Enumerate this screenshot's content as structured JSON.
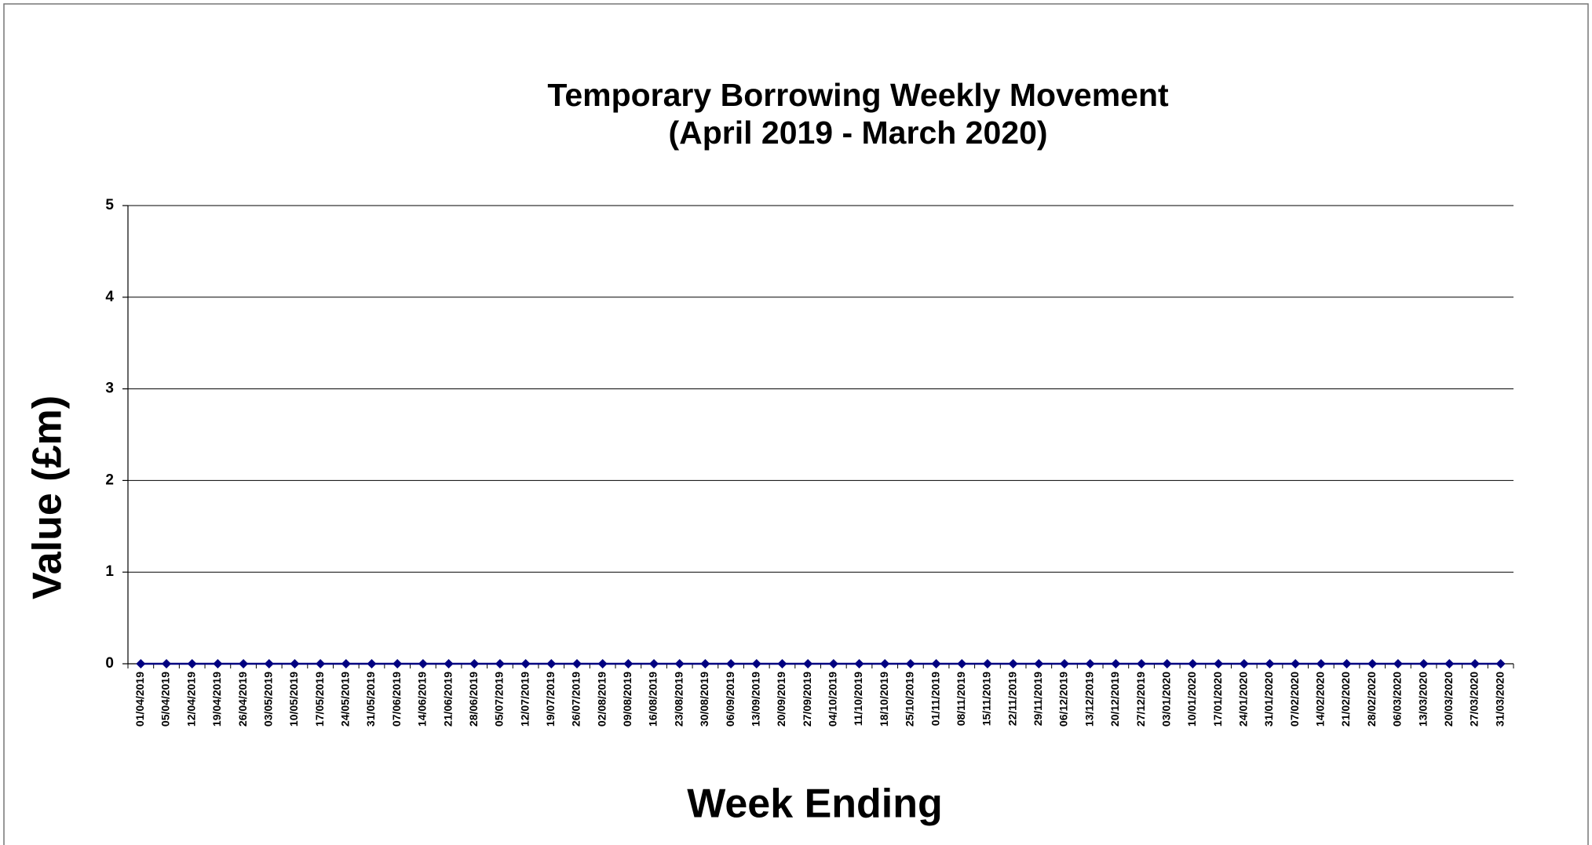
{
  "chart_data": {
    "type": "line",
    "title": [
      "Temporary Borrowing Weekly Movement",
      "(April 2019 - March 2020)"
    ],
    "x_label": "Week Ending",
    "y_label": "Value (£m)",
    "categories": [
      "01/04/2019",
      "05/04/2019",
      "12/04/2019",
      "19/04/2019",
      "26/04/2019",
      "03/05/2019",
      "10/05/2019",
      "17/05/2019",
      "24/05/2019",
      "31/05/2019",
      "07/06/2019",
      "14/06/2019",
      "21/06/2019",
      "28/06/2019",
      "05/07/2019",
      "12/07/2019",
      "19/07/2019",
      "26/07/2019",
      "02/08/2019",
      "09/08/2019",
      "16/08/2019",
      "23/08/2019",
      "30/08/2019",
      "06/09/2019",
      "13/09/2019",
      "20/09/2019",
      "27/09/2019",
      "04/10/2019",
      "11/10/2019",
      "18/10/2019",
      "25/10/2019",
      "01/11/2019",
      "08/11/2019",
      "15/11/2019",
      "22/11/2019",
      "29/11/2019",
      "06/12/2019",
      "13/12/2019",
      "20/12/2019",
      "27/12/2019",
      "03/01/2020",
      "10/01/2020",
      "17/01/2020",
      "24/01/2020",
      "31/01/2020",
      "07/02/2020",
      "14/02/2020",
      "21/02/2020",
      "28/02/2020",
      "06/03/2020",
      "13/03/2020",
      "20/03/2020",
      "27/03/2020",
      "31/03/2020"
    ],
    "values": [
      0,
      0,
      0,
      0,
      0,
      0,
      0,
      0,
      0,
      0,
      0,
      0,
      0,
      0,
      0,
      0,
      0,
      0,
      0,
      0,
      0,
      0,
      0,
      0,
      0,
      0,
      0,
      0,
      0,
      0,
      0,
      0,
      0,
      0,
      0,
      0,
      0,
      0,
      0,
      0,
      0,
      0,
      0,
      0,
      0,
      0,
      0,
      0,
      0,
      0,
      0,
      0,
      0,
      0
    ],
    "color": "#000080",
    "ylim": [
      0,
      5
    ],
    "yticks": [
      0,
      1,
      2,
      3,
      4,
      5
    ],
    "grid": true
  }
}
